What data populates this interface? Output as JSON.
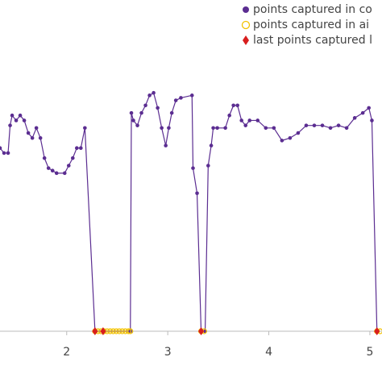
{
  "chart_data": {
    "type": "line",
    "xlim": [
      1.34,
      5.12
    ],
    "ylim": [
      0,
      1.32
    ],
    "xticks": [
      2,
      3,
      4,
      5
    ],
    "series": [
      {
        "name": "points captured in co",
        "color": "#5b2d91",
        "marker": "circle",
        "x": [
          1.34,
          1.38,
          1.42,
          1.44,
          1.46,
          1.5,
          1.54,
          1.58,
          1.62,
          1.66,
          1.7,
          1.74,
          1.78,
          1.82,
          1.86,
          1.9,
          1.98,
          2.02,
          2.06,
          2.1,
          2.14,
          2.18,
          2.28,
          2.63,
          2.64,
          2.66,
          2.7,
          2.74,
          2.78,
          2.82,
          2.86,
          2.9,
          2.94,
          2.98,
          3.01,
          3.04,
          3.08,
          3.13,
          3.24,
          3.25,
          3.29,
          3.33,
          3.37,
          3.4,
          3.43,
          3.45,
          3.49,
          3.57,
          3.61,
          3.65,
          3.69,
          3.73,
          3.77,
          3.81,
          3.89,
          3.97,
          4.05,
          4.13,
          4.21,
          4.29,
          4.37,
          4.45,
          4.53,
          4.61,
          4.69,
          4.77,
          4.85,
          4.93,
          4.99,
          5.02,
          5.07
        ],
        "values": [
          0.73,
          0.71,
          0.71,
          0.82,
          0.86,
          0.84,
          0.86,
          0.84,
          0.79,
          0.77,
          0.81,
          0.77,
          0.69,
          0.65,
          0.64,
          0.63,
          0.63,
          0.66,
          0.69,
          0.73,
          0.73,
          0.81,
          0,
          0,
          0.87,
          0.84,
          0.82,
          0.87,
          0.9,
          0.94,
          0.95,
          0.89,
          0.81,
          0.74,
          0.81,
          0.87,
          0.92,
          0.93,
          0.94,
          0.65,
          0.55,
          0,
          0,
          0.66,
          0.74,
          0.81,
          0.81,
          0.81,
          0.86,
          0.9,
          0.9,
          0.84,
          0.82,
          0.84,
          0.84,
          0.81,
          0.81,
          0.76,
          0.77,
          0.79,
          0.82,
          0.82,
          0.82,
          0.81,
          0.82,
          0.81,
          0.85,
          0.87,
          0.89,
          0.84,
          0
        ]
      },
      {
        "name": "points captured in ai",
        "color": "#f2c200",
        "marker": "open-circle",
        "x": [
          2.28,
          2.31,
          2.34,
          2.37,
          2.4,
          2.43,
          2.46,
          2.49,
          2.52,
          2.55,
          2.58,
          2.61,
          2.63,
          3.33,
          3.36,
          5.07,
          5.1
        ],
        "values": [
          0,
          0,
          0,
          0,
          0,
          0,
          0,
          0,
          0,
          0,
          0,
          0,
          0,
          0,
          0,
          0,
          0
        ]
      },
      {
        "name": "last points captured l",
        "color": "#d81e1e",
        "marker": "diamond",
        "x": [
          2.28,
          2.36,
          3.33,
          5.07
        ],
        "values": [
          0,
          0,
          0,
          0
        ]
      }
    ]
  }
}
